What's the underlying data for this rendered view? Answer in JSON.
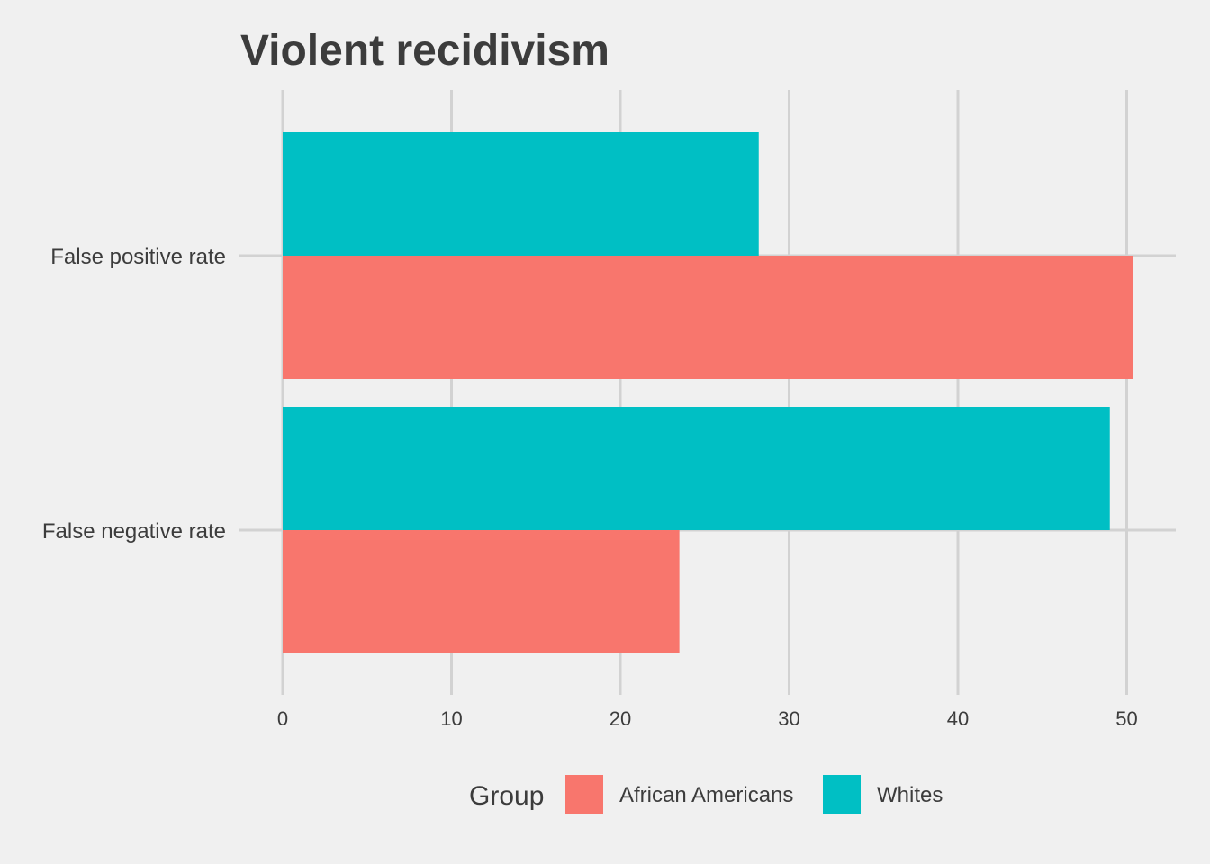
{
  "chart_data": {
    "type": "bar",
    "orientation": "horizontal",
    "title": "Violent recidivism",
    "xlabel": "",
    "ylabel": "",
    "categories": [
      "False positive rate",
      "False negative rate"
    ],
    "series": [
      {
        "name": "African Americans",
        "values": [
          50.4,
          23.5
        ],
        "color": "#F8766D"
      },
      {
        "name": "Whites",
        "values": [
          28.2,
          49.0
        ],
        "color": "#00BFC4"
      }
    ],
    "xlim": [
      0,
      53
    ],
    "x_ticks": [
      0,
      10,
      20,
      30,
      40,
      50
    ],
    "grid": true,
    "legend": {
      "title": "Group",
      "position": "bottom"
    }
  }
}
